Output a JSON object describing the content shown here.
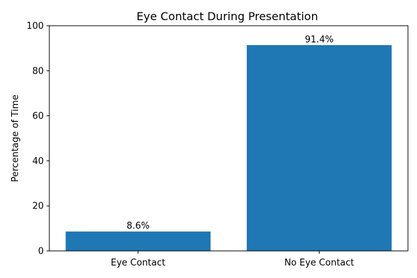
{
  "chart_data": {
    "type": "bar",
    "title": "Eye Contact During Presentation",
    "xlabel": "",
    "ylabel": "Percentage of Time",
    "categories": [
      "Eye Contact",
      "No Eye Contact"
    ],
    "values": [
      8.6,
      91.4
    ],
    "data_labels": [
      "8.6%",
      "91.4%"
    ],
    "ylim": [
      0,
      100
    ],
    "yticks": [
      0,
      20,
      40,
      60,
      80,
      100
    ],
    "grid": false,
    "bar_color": "#1f77b4"
  }
}
